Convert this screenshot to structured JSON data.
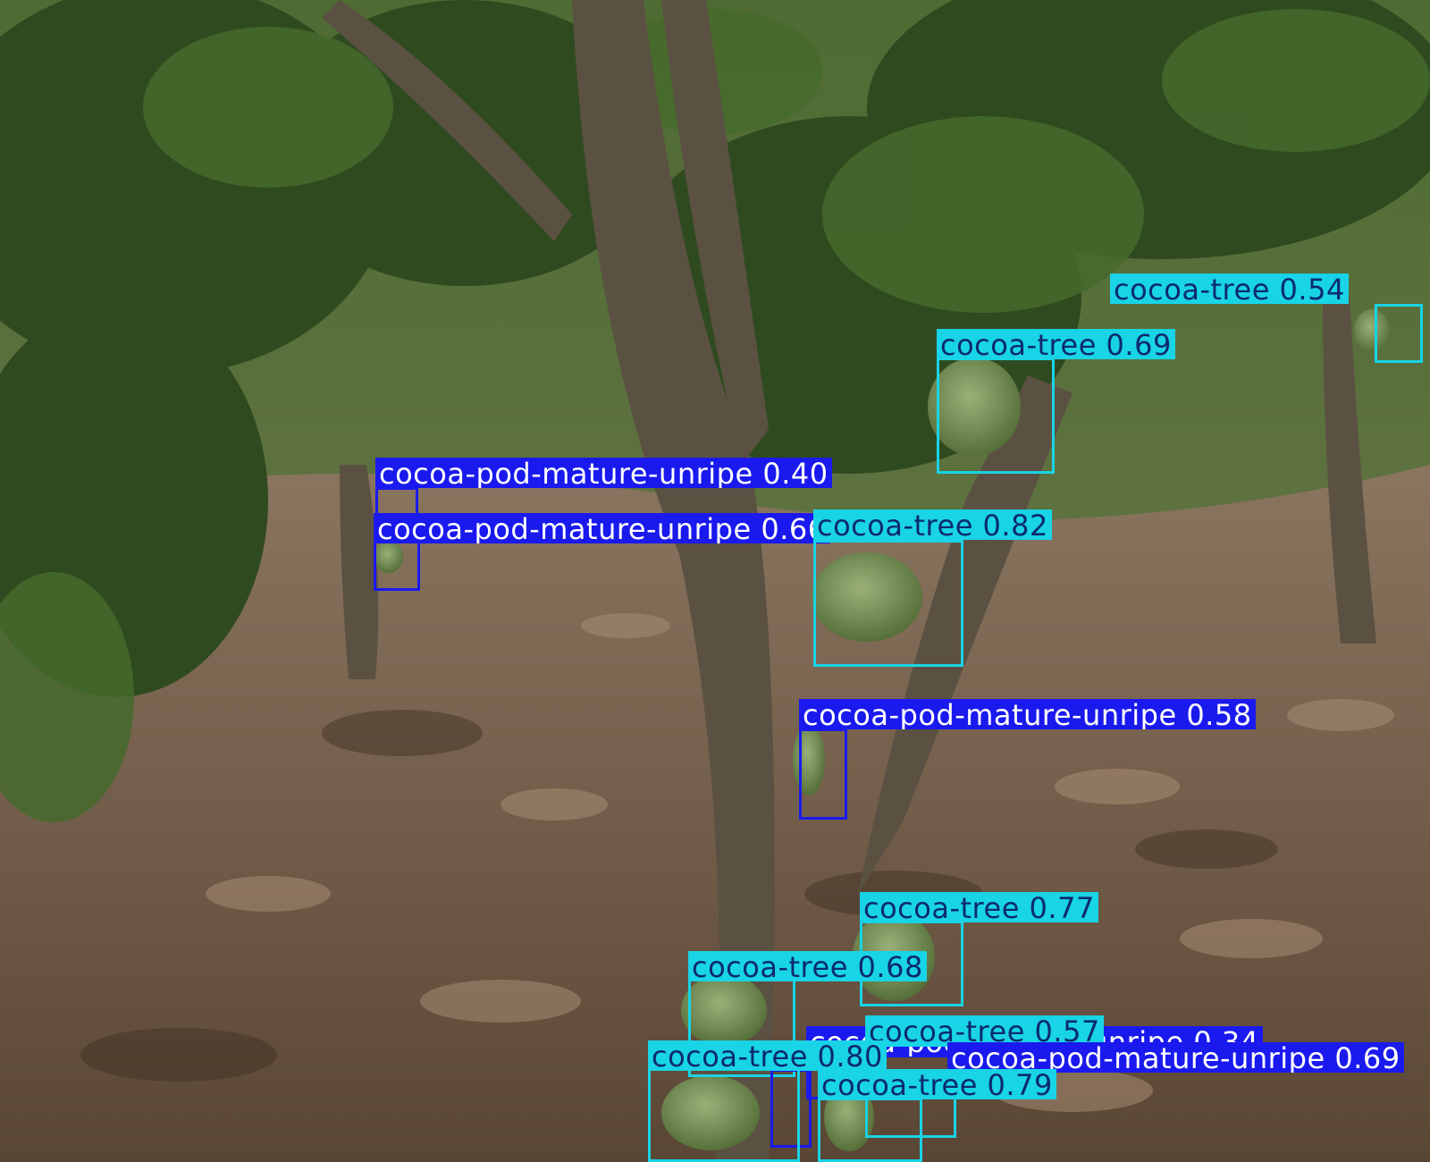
{
  "image": {
    "description_icon": "photo-icon",
    "content": "cocoa orchard with tree trunks, foliage, leaf litter and cocoa pods"
  },
  "colors": {
    "cocoa_tree": "#19d3e6",
    "cocoa_pod_mature_unripe": "#1a1aee",
    "tree_label_text": "#0b2a6f",
    "pod_label_text": "#ffffff"
  },
  "detections": [
    {
      "class": "cocoa-tree",
      "text": "cocoa-tree 0.54",
      "score": 0.54
    },
    {
      "class": "cocoa-tree",
      "text": "cocoa-tree 0.69",
      "score": 0.69
    },
    {
      "class": "cocoa-pod-mature-unripe",
      "text": "cocoa-pod-mature-unripe 0.40",
      "score": 0.4
    },
    {
      "class": "cocoa-pod-mature-unripe",
      "text": "cocoa-pod-mature-unripe 0.66",
      "score": 0.66
    },
    {
      "class": "cocoa-tree",
      "text": "cocoa-tree 0.82",
      "score": 0.82
    },
    {
      "class": "cocoa-pod-mature-unripe",
      "text": "cocoa-pod-mature-unripe 0.58",
      "score": 0.58
    },
    {
      "class": "cocoa-tree",
      "text": "cocoa-tree 0.77",
      "score": 0.77
    },
    {
      "class": "cocoa-tree",
      "text": "cocoa-tree 0.68",
      "score": 0.68
    },
    {
      "class": "cocoa-pod-mature-unripe",
      "text": "cocoa-pod-mature-unripe 0.34",
      "score": 0.34
    },
    {
      "class": "cocoa-tree",
      "text": "cocoa-tree 0.57",
      "score": 0.57
    },
    {
      "class": "cocoa-pod-mature-unripe",
      "text": "cocoa-pod-mature-unripe 0.69",
      "score": 0.69
    },
    {
      "class": "cocoa-tree",
      "text": "cocoa-tree 0.80",
      "score": 0.8
    },
    {
      "class": "cocoa-tree",
      "text": "cocoa-tree 0.79",
      "score": 0.79
    }
  ]
}
